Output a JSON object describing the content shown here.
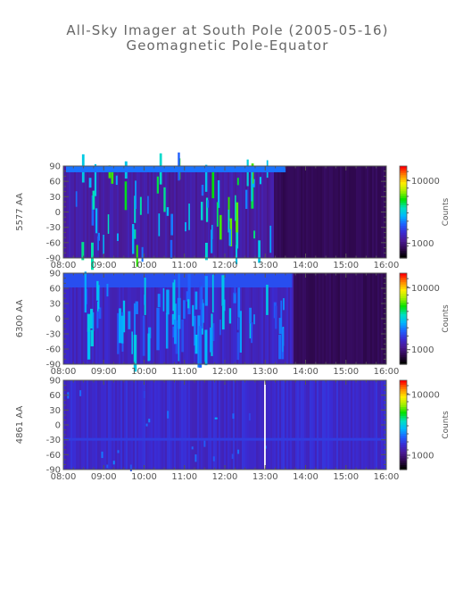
{
  "title": "All-Sky Imager at South Pole (2005-05-16)",
  "subtitle": "Geomagnetic Pole-Equator",
  "colors": {
    "axis": "#555555",
    "colormap": [
      "#000000",
      "#300850",
      "#4a1a96",
      "#3a2bd4",
      "#1e63ff",
      "#00b8ff",
      "#00e0c0",
      "#00e000",
      "#9ff000",
      "#ffee00",
      "#ff8800",
      "#ff0000"
    ]
  },
  "chart_data": [
    {
      "type": "heatmap",
      "ylabel": "5577 AA",
      "colorbar_label": "Counts",
      "colorbar_ticks": [
        "10000",
        "1000"
      ],
      "x_ticks": [
        "08:00",
        "09:00",
        "10:00",
        "11:00",
        "12:00",
        "13:00",
        "14:00",
        "15:00",
        "16:00"
      ],
      "y_ticks": [
        "90",
        "60",
        "30",
        "0",
        "-30",
        "-60",
        "-90"
      ],
      "xlim": [
        "08:00",
        "16:00"
      ],
      "ylim": [
        -90,
        90
      ],
      "description_values": {
        "background_level": 0.2,
        "dark_after": "13:12"
      }
    },
    {
      "type": "heatmap",
      "ylabel": "6300 AA",
      "colorbar_label": "Counts",
      "colorbar_ticks": [
        "10000",
        "1000"
      ],
      "x_ticks": [
        "08:00",
        "09:00",
        "10:00",
        "11:00",
        "12:00",
        "13:00",
        "14:00",
        "15:00",
        "16:00"
      ],
      "y_ticks": [
        "90",
        "60",
        "30",
        "0",
        "-30",
        "-60",
        "-90"
      ],
      "xlim": [
        "08:00",
        "16:00"
      ],
      "ylim": [
        -90,
        90
      ],
      "description_values": {
        "background_level": 0.24,
        "dark_after": "13:40"
      }
    },
    {
      "type": "heatmap",
      "ylabel": "4861 AA",
      "colorbar_label": "Counts",
      "colorbar_ticks": [
        "10000",
        "1000"
      ],
      "x_ticks": [
        "08:00",
        "09:00",
        "10:00",
        "11:00",
        "12:00",
        "13:00",
        "14:00",
        "15:00",
        "16:00"
      ],
      "y_ticks": [
        "90",
        "60",
        "30",
        "0",
        "-30",
        "-60",
        "-90"
      ],
      "xlim": [
        "08:00",
        "16:00"
      ],
      "ylim": [
        -90,
        90
      ],
      "description_values": {
        "background_level": 0.26,
        "dark_after": ""
      }
    }
  ]
}
